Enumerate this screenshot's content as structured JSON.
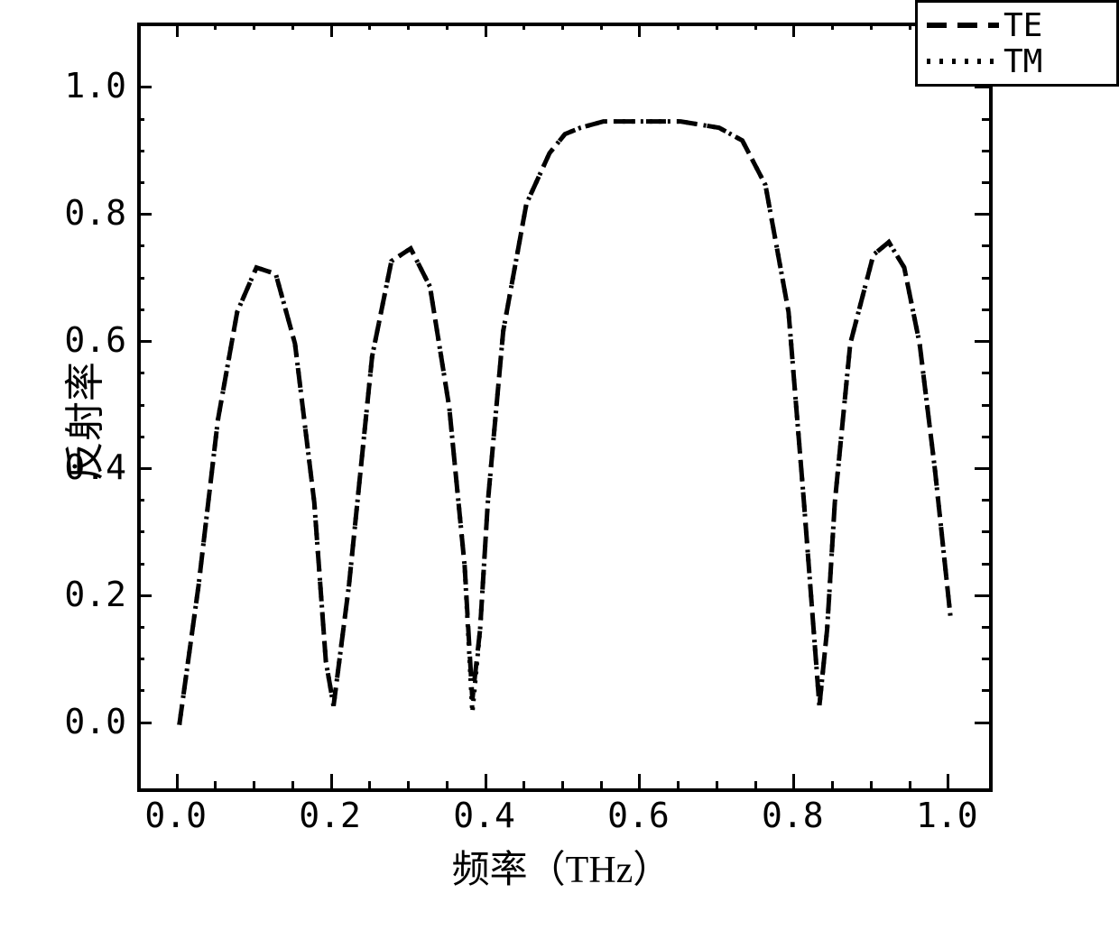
{
  "chart": {
    "type": "line",
    "xlabel": "频率（THz）",
    "ylabel": "反射率",
    "xlim": [
      -0.05,
      1.05
    ],
    "ylim": [
      -0.1,
      1.1
    ],
    "xticks_major": [
      0.0,
      0.2,
      0.4,
      0.6,
      0.8,
      1.0
    ],
    "yticks_major": [
      0.0,
      0.2,
      0.4,
      0.6,
      0.8,
      1.0
    ],
    "xtick_labels": [
      "0.0",
      "0.2",
      "0.4",
      "0.6",
      "0.8",
      "1.0"
    ],
    "ytick_labels": [
      "0.0",
      "0.2",
      "0.4",
      "0.6",
      "0.8",
      "1.0"
    ],
    "minor_ticks_per_major": 4,
    "label_fontsize": 42,
    "tick_fontsize": 38,
    "line_width": 5,
    "background_color": "#ffffff",
    "border_color": "#000000",
    "line_color": "#000000",
    "legend": {
      "position": "top-right",
      "border_color": "#000000",
      "items": [
        {
          "label": "TE",
          "style": "dash",
          "color": "#000000"
        },
        {
          "label": "TM",
          "style": "dot",
          "color": "#000000"
        }
      ]
    },
    "series_TE": {
      "style": "dash",
      "dash_pattern": [
        22,
        12
      ],
      "color": "#000000",
      "x": [
        0.0,
        0.025,
        0.05,
        0.075,
        0.1,
        0.125,
        0.15,
        0.175,
        0.19,
        0.2,
        0.22,
        0.25,
        0.275,
        0.3,
        0.325,
        0.35,
        0.37,
        0.38,
        0.39,
        0.4,
        0.42,
        0.45,
        0.48,
        0.5,
        0.52,
        0.55,
        0.6,
        0.65,
        0.7,
        0.73,
        0.76,
        0.79,
        0.81,
        0.83,
        0.84,
        0.85,
        0.87,
        0.9,
        0.92,
        0.94,
        0.96,
        0.98,
        1.0
      ],
      "y": [
        0.0,
        0.22,
        0.48,
        0.65,
        0.72,
        0.71,
        0.6,
        0.35,
        0.1,
        0.03,
        0.22,
        0.58,
        0.73,
        0.75,
        0.69,
        0.5,
        0.25,
        0.04,
        0.15,
        0.35,
        0.62,
        0.82,
        0.9,
        0.93,
        0.94,
        0.95,
        0.95,
        0.95,
        0.94,
        0.92,
        0.85,
        0.65,
        0.35,
        0.03,
        0.15,
        0.35,
        0.6,
        0.74,
        0.76,
        0.72,
        0.6,
        0.4,
        0.17
      ]
    },
    "series_TM": {
      "style": "dot",
      "dot_pattern": [
        3,
        7
      ],
      "color": "#000000",
      "x": [
        0.0,
        0.025,
        0.05,
        0.075,
        0.1,
        0.125,
        0.15,
        0.175,
        0.19,
        0.2,
        0.22,
        0.25,
        0.275,
        0.3,
        0.325,
        0.35,
        0.37,
        0.38,
        0.39,
        0.4,
        0.42,
        0.45,
        0.48,
        0.5,
        0.52,
        0.55,
        0.6,
        0.65,
        0.7,
        0.73,
        0.76,
        0.79,
        0.81,
        0.83,
        0.84,
        0.85,
        0.87,
        0.9,
        0.92,
        0.94,
        0.96,
        0.98,
        1.0
      ],
      "y": [
        0.0,
        0.22,
        0.48,
        0.65,
        0.72,
        0.71,
        0.6,
        0.35,
        0.1,
        0.03,
        0.22,
        0.58,
        0.73,
        0.75,
        0.69,
        0.5,
        0.25,
        0.02,
        0.15,
        0.35,
        0.62,
        0.82,
        0.9,
        0.93,
        0.94,
        0.95,
        0.95,
        0.95,
        0.94,
        0.92,
        0.85,
        0.65,
        0.35,
        0.03,
        0.15,
        0.35,
        0.6,
        0.74,
        0.76,
        0.72,
        0.6,
        0.4,
        0.17
      ]
    }
  }
}
